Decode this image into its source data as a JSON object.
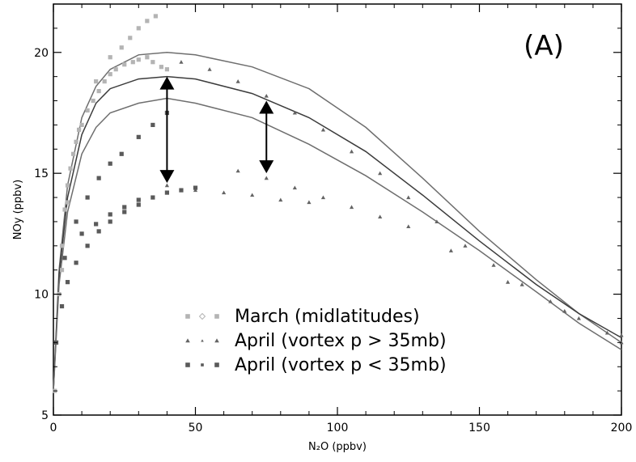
{
  "chart_data": {
    "type": "scatter",
    "panel_label": "(A)",
    "xlabel": "N₂O (ppbv)",
    "ylabel": "NOy (ppbv)",
    "xlim": [
      0,
      200
    ],
    "ylim": [
      5,
      22
    ],
    "x_ticks": [
      0,
      50,
      100,
      150,
      200
    ],
    "x_tick_labels": [
      "0",
      "50",
      "100",
      "150",
      "200"
    ],
    "y_ticks": [
      5,
      10,
      15,
      20
    ],
    "y_tick_labels": [
      "5",
      "10",
      "15",
      "20"
    ],
    "grid": false,
    "legend_position": "bottom-center",
    "series": [
      {
        "name": "March (midlatitudes)",
        "marker": "square",
        "color": "#b4b4b4",
        "points": [
          [
            0.5,
            6
          ],
          [
            1,
            8
          ],
          [
            2,
            10
          ],
          [
            3,
            12
          ],
          [
            4,
            13.5
          ],
          [
            5,
            14.5
          ],
          [
            6,
            15.2
          ],
          [
            7,
            15.8
          ],
          [
            8,
            16.3
          ],
          [
            10,
            17
          ],
          [
            12,
            17.6
          ],
          [
            14,
            18
          ],
          [
            16,
            18.4
          ],
          [
            18,
            18.8
          ],
          [
            20,
            19.1
          ],
          [
            22,
            19.3
          ],
          [
            25,
            19.5
          ],
          [
            28,
            19.6
          ],
          [
            30,
            19.7
          ],
          [
            33,
            19.8
          ],
          [
            35,
            19.6
          ],
          [
            38,
            19.4
          ],
          [
            40,
            19.3
          ],
          [
            3,
            11
          ],
          [
            5,
            13.8
          ],
          [
            9,
            16.8
          ],
          [
            15,
            18.8
          ],
          [
            20,
            19.8
          ],
          [
            24,
            20.2
          ],
          [
            27,
            20.6
          ],
          [
            30,
            21
          ],
          [
            33,
            21.3
          ],
          [
            36,
            21.5
          ]
        ]
      },
      {
        "name": "April (vortex p > 35mb)",
        "marker": "triangle",
        "color": "#646464",
        "points": [
          [
            45,
            19.6
          ],
          [
            55,
            19.3
          ],
          [
            65,
            18.8
          ],
          [
            75,
            18.2
          ],
          [
            85,
            17.5
          ],
          [
            95,
            16.8
          ],
          [
            105,
            15.9
          ],
          [
            115,
            15
          ],
          [
            125,
            14
          ],
          [
            135,
            13
          ],
          [
            145,
            12
          ],
          [
            155,
            11.2
          ],
          [
            165,
            10.4
          ],
          [
            175,
            9.7
          ],
          [
            185,
            9
          ],
          [
            195,
            8.4
          ],
          [
            200,
            8
          ],
          [
            40,
            14.5
          ],
          [
            50,
            14.3
          ],
          [
            60,
            14.2
          ],
          [
            70,
            14.1
          ],
          [
            80,
            13.9
          ],
          [
            90,
            13.8
          ],
          [
            65,
            15.1
          ],
          [
            75,
            14.8
          ],
          [
            85,
            14.4
          ],
          [
            95,
            14
          ],
          [
            105,
            13.6
          ],
          [
            115,
            13.2
          ],
          [
            125,
            12.8
          ],
          [
            140,
            11.8
          ],
          [
            160,
            10.5
          ],
          [
            180,
            9.3
          ],
          [
            200,
            8.3
          ]
        ]
      },
      {
        "name": "April (vortex p < 35mb)",
        "marker": "square",
        "color": "#5a5a5a",
        "points": [
          [
            1,
            8
          ],
          [
            3,
            9.5
          ],
          [
            5,
            10.5
          ],
          [
            8,
            11.3
          ],
          [
            12,
            12
          ],
          [
            16,
            12.6
          ],
          [
            20,
            13
          ],
          [
            25,
            13.4
          ],
          [
            30,
            13.7
          ],
          [
            35,
            14
          ],
          [
            40,
            14.2
          ],
          [
            45,
            14.3
          ],
          [
            50,
            14.4
          ],
          [
            4,
            11.5
          ],
          [
            8,
            13
          ],
          [
            12,
            14
          ],
          [
            16,
            14.8
          ],
          [
            20,
            15.4
          ],
          [
            24,
            15.8
          ],
          [
            30,
            16.5
          ],
          [
            35,
            17
          ],
          [
            40,
            17.5
          ],
          [
            10,
            12.5
          ],
          [
            15,
            12.9
          ],
          [
            20,
            13.3
          ],
          [
            25,
            13.6
          ],
          [
            30,
            13.9
          ]
        ]
      }
    ],
    "reference_curves": [
      {
        "color": "#6e6e6e",
        "points": [
          [
            0,
            6
          ],
          [
            2,
            11
          ],
          [
            5,
            14.5
          ],
          [
            10,
            17.3
          ],
          [
            15,
            18.6
          ],
          [
            20,
            19.3
          ],
          [
            30,
            19.9
          ],
          [
            40,
            20
          ],
          [
            50,
            19.9
          ],
          [
            70,
            19.4
          ],
          [
            90,
            18.5
          ],
          [
            110,
            16.9
          ],
          [
            130,
            14.8
          ],
          [
            150,
            12.6
          ],
          [
            170,
            10.6
          ],
          [
            185,
            9.2
          ],
          [
            200,
            8
          ]
        ]
      },
      {
        "color": "#3c3c3c",
        "points": [
          [
            0,
            6
          ],
          [
            2,
            10.8
          ],
          [
            5,
            14
          ],
          [
            10,
            16.6
          ],
          [
            15,
            17.9
          ],
          [
            20,
            18.5
          ],
          [
            30,
            18.9
          ],
          [
            40,
            19
          ],
          [
            50,
            18.9
          ],
          [
            70,
            18.3
          ],
          [
            90,
            17.3
          ],
          [
            110,
            15.9
          ],
          [
            130,
            14.1
          ],
          [
            150,
            12.2
          ],
          [
            170,
            10.4
          ],
          [
            185,
            9.2
          ],
          [
            200,
            8.2
          ]
        ]
      },
      {
        "color": "#6e6e6e",
        "points": [
          [
            0,
            6
          ],
          [
            2,
            10.4
          ],
          [
            5,
            13.4
          ],
          [
            10,
            15.8
          ],
          [
            15,
            16.9
          ],
          [
            20,
            17.5
          ],
          [
            30,
            17.9
          ],
          [
            40,
            18.1
          ],
          [
            50,
            17.9
          ],
          [
            70,
            17.3
          ],
          [
            90,
            16.2
          ],
          [
            110,
            14.9
          ],
          [
            130,
            13.4
          ],
          [
            150,
            11.8
          ],
          [
            170,
            10.1
          ],
          [
            185,
            8.8
          ],
          [
            200,
            7.7
          ]
        ]
      }
    ],
    "arrows": [
      {
        "x": 40,
        "y_from": 19.0,
        "y_to": 14.6,
        "bidirectional": true
      },
      {
        "x": 75,
        "y_from": 18.0,
        "y_to": 15.0,
        "bidirectional": true
      }
    ]
  }
}
